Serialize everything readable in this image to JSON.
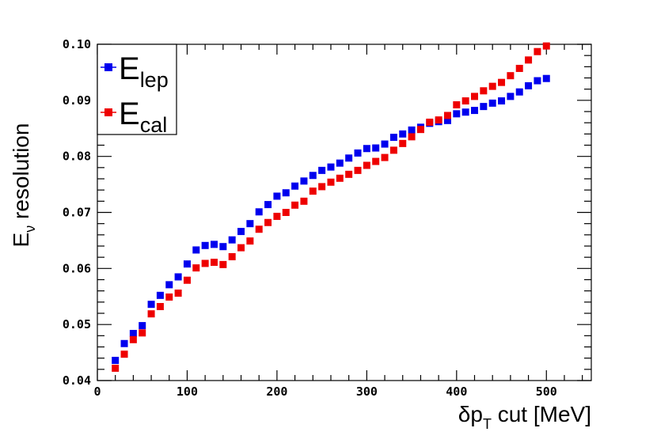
{
  "chart_data": {
    "type": "scatter",
    "xlabel": {
      "main": "δp",
      "sub": "T",
      "rest": " cut [MeV]"
    },
    "ylabel": {
      "main": "E",
      "sub": "ν",
      "rest": " resolution"
    },
    "xlim": [
      0,
      550
    ],
    "ylim": [
      0.04,
      0.1
    ],
    "xticks": [
      0,
      100,
      200,
      300,
      400,
      500
    ],
    "xtick_labels": [
      "0",
      "100",
      "200",
      "300",
      "400",
      "500"
    ],
    "yticks": [
      0.04,
      0.05,
      0.06,
      0.07,
      0.08,
      0.09,
      0.1
    ],
    "ytick_labels": [
      "0.04",
      "0.05",
      "0.06",
      "0.07",
      "0.08",
      "0.09",
      "0.10"
    ],
    "grid": false,
    "legend_position": "top-left",
    "x": [
      20,
      30,
      40,
      50,
      60,
      70,
      80,
      90,
      100,
      110,
      120,
      130,
      140,
      150,
      160,
      170,
      180,
      190,
      200,
      210,
      220,
      230,
      240,
      250,
      260,
      270,
      280,
      290,
      300,
      310,
      320,
      330,
      340,
      350,
      360,
      370,
      380,
      390,
      400,
      410,
      420,
      430,
      440,
      450,
      460,
      470,
      480,
      490,
      500
    ],
    "series": [
      {
        "name": "E",
        "name_sub": "lep",
        "color": "#0000ee",
        "values": [
          0.0436,
          0.0466,
          0.0484,
          0.0498,
          0.0536,
          0.0552,
          0.0571,
          0.0585,
          0.0608,
          0.0633,
          0.0641,
          0.0643,
          0.0639,
          0.0651,
          0.0666,
          0.068,
          0.0701,
          0.0714,
          0.0729,
          0.0735,
          0.0747,
          0.0756,
          0.0766,
          0.0775,
          0.0781,
          0.0788,
          0.0797,
          0.0806,
          0.0814,
          0.0815,
          0.0822,
          0.0834,
          0.084,
          0.0847,
          0.0852,
          0.0859,
          0.0862,
          0.0864,
          0.0876,
          0.0879,
          0.0882,
          0.0889,
          0.0895,
          0.0899,
          0.0907,
          0.0915,
          0.0926,
          0.0935,
          0.0939
        ]
      },
      {
        "name": "E",
        "name_sub": "cal",
        "color": "#ee0000",
        "values": [
          0.0422,
          0.0447,
          0.0473,
          0.0485,
          0.0519,
          0.0532,
          0.0549,
          0.0556,
          0.0579,
          0.0601,
          0.0609,
          0.0611,
          0.0607,
          0.0621,
          0.0637,
          0.0649,
          0.067,
          0.0682,
          0.0693,
          0.07,
          0.0713,
          0.072,
          0.0738,
          0.0746,
          0.0754,
          0.0761,
          0.0768,
          0.0775,
          0.0784,
          0.0791,
          0.0798,
          0.0811,
          0.0823,
          0.0835,
          0.0848,
          0.0861,
          0.0865,
          0.0873,
          0.0892,
          0.0899,
          0.0907,
          0.0917,
          0.0925,
          0.0932,
          0.0944,
          0.0957,
          0.0972,
          0.0987,
          0.0997
        ]
      }
    ]
  }
}
